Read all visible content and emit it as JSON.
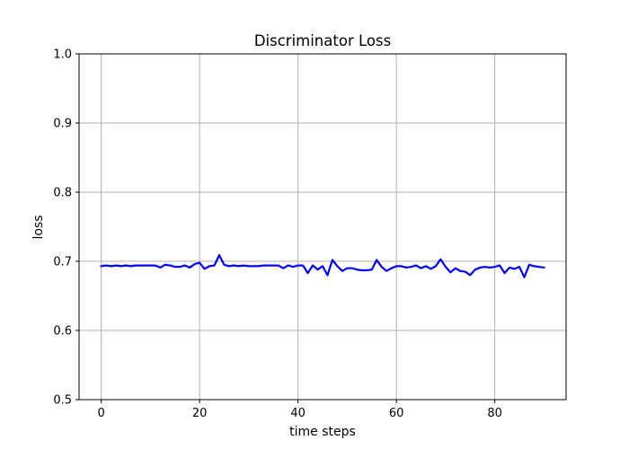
{
  "chart_data": {
    "type": "line",
    "title": "Discriminator Loss",
    "xlabel": "time steps",
    "ylabel": "loss",
    "xlim": [
      -4.5,
      94.5
    ],
    "ylim": [
      0.5,
      1.0
    ],
    "xticks": [
      0,
      20,
      40,
      60,
      80
    ],
    "yticks": [
      0.5,
      0.6,
      0.7,
      0.8,
      0.9,
      1.0
    ],
    "xtick_labels": [
      "0",
      "20",
      "40",
      "60",
      "80"
    ],
    "ytick_labels": [
      "0.5",
      "0.6",
      "0.7",
      "0.8",
      "0.9",
      "1.0"
    ],
    "grid": true,
    "series": [
      {
        "color": "#0000ff",
        "x": [
          0,
          1,
          2,
          3,
          4,
          5,
          6,
          7,
          8,
          9,
          10,
          11,
          12,
          13,
          14,
          15,
          16,
          17,
          18,
          19,
          20,
          21,
          22,
          23,
          24,
          25,
          26,
          27,
          28,
          29,
          30,
          31,
          32,
          33,
          34,
          35,
          36,
          37,
          38,
          39,
          40,
          41,
          42,
          43,
          44,
          45,
          46,
          47,
          48,
          49,
          50,
          51,
          52,
          53,
          54,
          55,
          56,
          57,
          58,
          59,
          60,
          61,
          62,
          63,
          64,
          65,
          66,
          67,
          68,
          69,
          70,
          71,
          72,
          73,
          74,
          75,
          76,
          77,
          78,
          79,
          80,
          81,
          82,
          83,
          84,
          85,
          86,
          87,
          88,
          89,
          90
        ],
        "values": [
          0.693,
          0.694,
          0.693,
          0.694,
          0.693,
          0.694,
          0.693,
          0.694,
          0.694,
          0.694,
          0.694,
          0.694,
          0.691,
          0.695,
          0.694,
          0.692,
          0.692,
          0.694,
          0.691,
          0.696,
          0.698,
          0.689,
          0.693,
          0.694,
          0.709,
          0.695,
          0.693,
          0.694,
          0.693,
          0.694,
          0.693,
          0.693,
          0.693,
          0.694,
          0.694,
          0.694,
          0.694,
          0.69,
          0.694,
          0.692,
          0.694,
          0.694,
          0.683,
          0.694,
          0.688,
          0.693,
          0.68,
          0.702,
          0.693,
          0.686,
          0.69,
          0.69,
          0.688,
          0.687,
          0.687,
          0.688,
          0.702,
          0.692,
          0.686,
          0.69,
          0.693,
          0.693,
          0.691,
          0.692,
          0.694,
          0.69,
          0.693,
          0.689,
          0.693,
          0.703,
          0.692,
          0.684,
          0.69,
          0.686,
          0.685,
          0.68,
          0.688,
          0.691,
          0.692,
          0.691,
          0.692,
          0.694,
          0.683,
          0.691,
          0.689,
          0.692,
          0.677,
          0.695,
          0.693,
          0.692,
          0.691
        ]
      }
    ]
  }
}
